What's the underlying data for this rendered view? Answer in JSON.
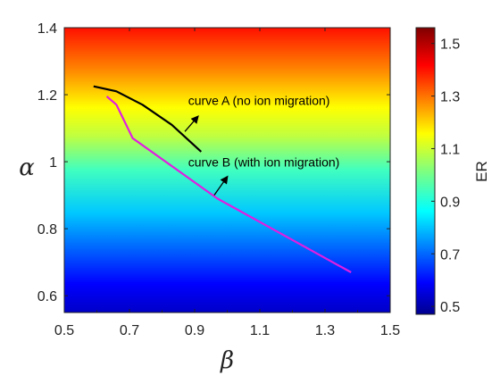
{
  "chart_data": {
    "type": "line",
    "xlabel": "β",
    "ylabel": "α",
    "xlim": [
      0.5,
      1.5
    ],
    "ylim": [
      0.55,
      1.4
    ],
    "xticks": [
      "0.5",
      "0.7",
      "0.9",
      "1.1",
      "1.3",
      "1.5"
    ],
    "xticks_minor": [
      "0.6",
      "0.8",
      "1",
      "1.2",
      "1.4"
    ],
    "yticks": [
      "0.6",
      "0.8",
      "1",
      "1.2",
      "1.4"
    ],
    "grid": false,
    "background": "color gradient by ER (jet colormap), varying with α",
    "series": [
      {
        "name": "curve A (no ion migration)",
        "color": "#000000",
        "x": [
          0.59,
          0.66,
          0.74,
          0.83,
          0.92
        ],
        "y": [
          1.225,
          1.21,
          1.17,
          1.11,
          1.03
        ]
      },
      {
        "name": "curve B (with ion migration)",
        "color": "#e01ee0",
        "x": [
          0.63,
          0.66,
          0.71,
          0.97,
          1.38
        ],
        "y": [
          1.195,
          1.17,
          1.07,
          0.89,
          0.67
        ]
      }
    ],
    "annotations": [
      {
        "text": "curve A (no ion migration)",
        "x": 0.88,
        "y": 1.17,
        "arrow_from": [
          0.87,
          1.09
        ],
        "arrow_to": [
          0.91,
          1.135
        ]
      },
      {
        "text": "curve B (with ion migration)",
        "x": 0.88,
        "y": 0.985,
        "arrow_from": [
          0.96,
          0.9
        ],
        "arrow_to": [
          1.0,
          0.955
        ]
      }
    ],
    "colorbar": {
      "label": "ER",
      "range": [
        0.47,
        1.56
      ],
      "ticks": [
        "0.5",
        "0.7",
        "0.9",
        "1.1",
        "1.3",
        "1.5"
      ],
      "colormap": "jet"
    }
  }
}
